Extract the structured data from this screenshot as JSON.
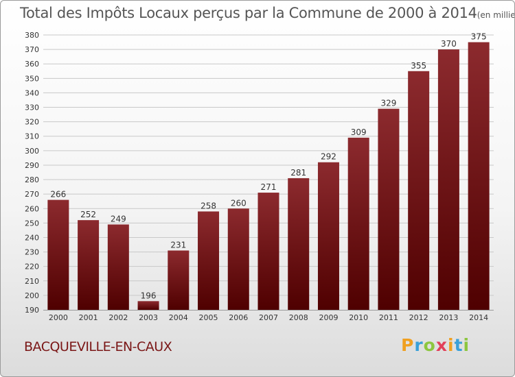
{
  "colors": {
    "bar_top": "#8c2a2e",
    "bar_bottom": "#4f0000",
    "title": "#555555",
    "commune": "#7a1616",
    "axis_text": "#333333",
    "grid": "#c8c8c8"
  },
  "commune": {
    "name": "BACQUEVILLE-EN-CAUX"
  },
  "brand": {
    "name": "Proxiti",
    "letters": [
      "P",
      "r",
      "o",
      "x",
      "i",
      "t",
      "i"
    ],
    "letter_colors": [
      "#f0a020",
      "#3aa0d8",
      "#8cc63f",
      "#e2405a",
      "#f0a020",
      "#3aa0d8",
      "#8cc63f"
    ]
  },
  "chart_data": {
    "type": "bar",
    "title": "Total des Impôts Locaux perçus par la Commune de 2000 à 2014",
    "subtitle": "(en milliers d'€)",
    "xlabel": "",
    "ylabel": "",
    "categories": [
      "2000",
      "2001",
      "2002",
      "2003",
      "2004",
      "2005",
      "2006",
      "2007",
      "2008",
      "2009",
      "2010",
      "2011",
      "2012",
      "2013",
      "2014"
    ],
    "values": [
      266,
      252,
      249,
      196,
      231,
      258,
      260,
      271,
      281,
      292,
      309,
      329,
      355,
      370,
      375
    ],
    "ylim": [
      190,
      380
    ],
    "yticks": [
      190,
      200,
      210,
      220,
      230,
      240,
      250,
      260,
      270,
      280,
      290,
      300,
      310,
      320,
      330,
      340,
      350,
      360,
      370,
      380
    ],
    "grid": "horizontal",
    "data_labels": true,
    "legend": "none"
  }
}
